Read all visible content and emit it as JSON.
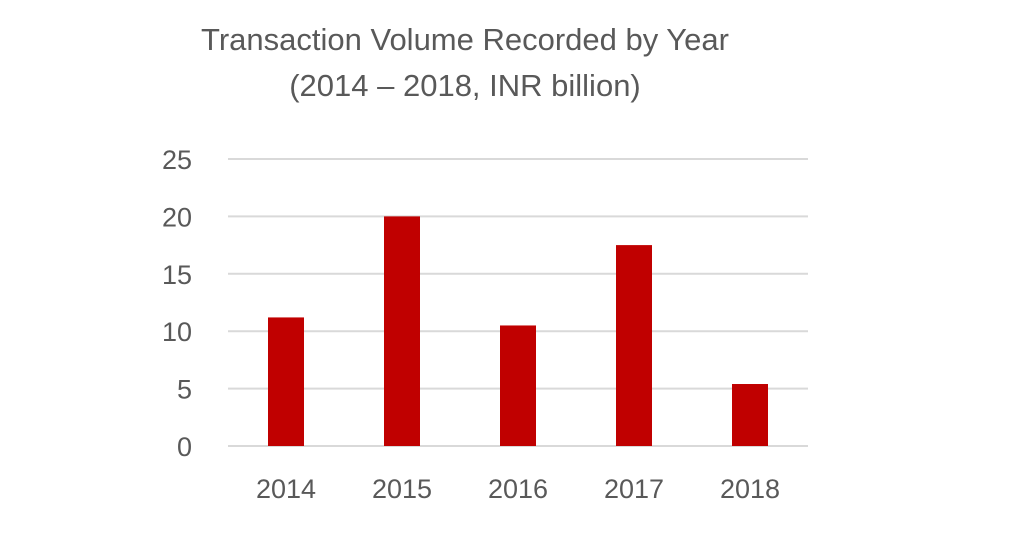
{
  "chart_data": {
    "type": "bar",
    "title": "Transaction Volume Recorded by Year",
    "subtitle": "(2014 – 2018, INR billion)",
    "categories": [
      "2014",
      "2015",
      "2016",
      "2017",
      "2018"
    ],
    "values": [
      11.2,
      20,
      10.5,
      17.5,
      5.4
    ],
    "xlabel": "",
    "ylabel": "",
    "ylim": [
      0,
      25
    ],
    "yticks": [
      "0",
      "5",
      "10",
      "15",
      "20",
      "25"
    ],
    "grid": true,
    "legend": "none",
    "bar_color": "#c00000"
  }
}
